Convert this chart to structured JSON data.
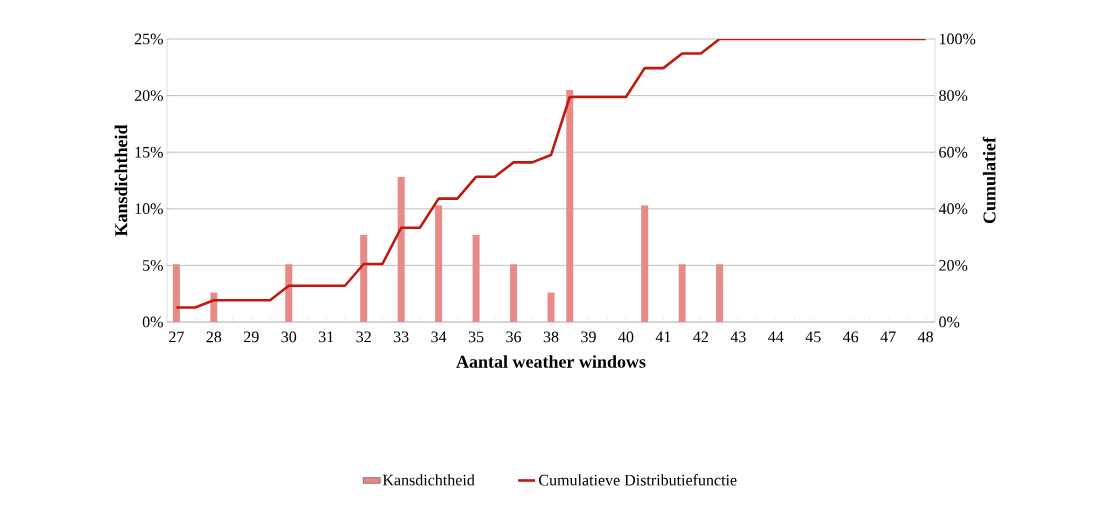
{
  "chart_data": {
    "type": "bar",
    "xlabel": "Aantal weather windows",
    "ylabel": "Kansdichtheid",
    "y2label": "Cumulatief",
    "categories": [
      "27",
      null,
      "28",
      null,
      "29",
      null,
      "30",
      null,
      "31",
      null,
      "32",
      null,
      "33",
      null,
      "34",
      null,
      "35",
      null,
      "36",
      null,
      "38",
      null,
      "39",
      null,
      "40",
      null,
      "41",
      null,
      "42",
      null,
      "43",
      null,
      "44",
      null,
      "45",
      null,
      "46",
      null,
      "47",
      null,
      "48"
    ],
    "series": [
      {
        "name": "Kansdichtheid",
        "color": "#e88a87",
        "values": [
          5.1,
          0,
          2.6,
          0,
          0,
          0,
          5.1,
          0,
          0,
          0,
          7.7,
          0,
          12.8,
          0,
          10.3,
          0,
          7.7,
          0,
          5.1,
          0,
          2.6,
          20.5,
          0,
          0,
          0,
          10.3,
          0,
          5.1,
          0,
          5.1,
          0,
          0,
          0,
          0,
          0,
          0,
          0,
          0,
          0,
          0,
          0
        ]
      },
      {
        "name": "Cumulatieve Distributiefunctie",
        "type": "line",
        "axis": "y2",
        "color": "#c0190f",
        "values": [
          5.1,
          5.1,
          7.7,
          7.7,
          7.7,
          7.7,
          12.8,
          12.8,
          12.8,
          12.8,
          20.5,
          20.5,
          33.3,
          33.3,
          43.6,
          43.6,
          51.3,
          51.3,
          56.4,
          56.4,
          59.0,
          79.5,
          79.5,
          79.5,
          79.5,
          89.7,
          89.7,
          94.9,
          94.9,
          100,
          100,
          100,
          100,
          100,
          100,
          100,
          100,
          100,
          100,
          100,
          100
        ]
      }
    ],
    "ylim": [
      0,
      25
    ],
    "yticks": [
      {
        "value": 0,
        "label": "0%"
      },
      {
        "value": 5,
        "label": "5%"
      },
      {
        "value": 10,
        "label": "10%"
      },
      {
        "value": 15,
        "label": "15%"
      },
      {
        "value": 20,
        "label": "20%"
      },
      {
        "value": 25,
        "label": "25%"
      }
    ],
    "y2lim": [
      0,
      100
    ],
    "y2ticks": [
      {
        "value": 0,
        "label": "0%"
      },
      {
        "value": 20,
        "label": "20%"
      },
      {
        "value": 40,
        "label": "40%"
      },
      {
        "value": 60,
        "label": "60%"
      },
      {
        "value": 80,
        "label": "80%"
      },
      {
        "value": 100,
        "label": "100%"
      }
    ],
    "grid": "y",
    "legend": "bottom",
    "line_style": "solid",
    "marker": "none"
  }
}
